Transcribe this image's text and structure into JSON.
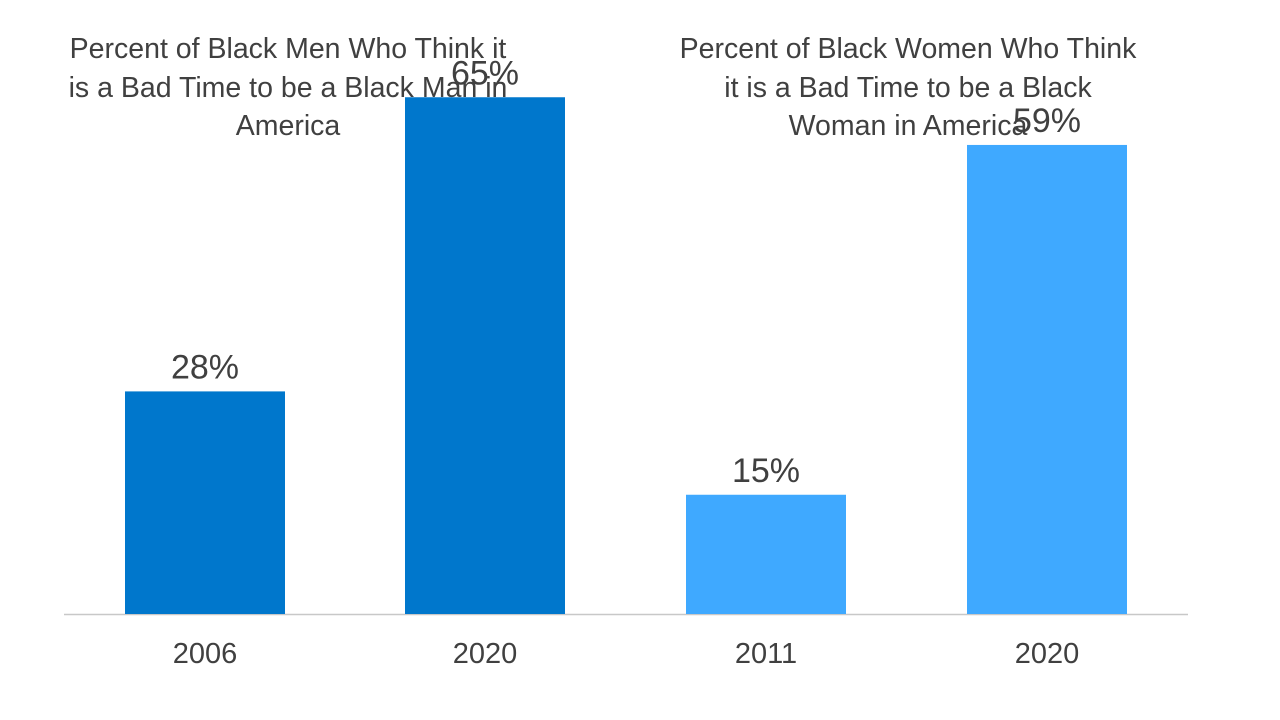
{
  "chart_data": [
    {
      "type": "bar",
      "title": "Percent of Black Men Who Think it is a Bad Time to be a Black Man in America",
      "categories": [
        "2006",
        "2020"
      ],
      "values": [
        28,
        65
      ],
      "value_labels": [
        "28%",
        "65%"
      ],
      "color": "#0077CC",
      "ylim": [
        0,
        100
      ],
      "grid": false,
      "legend": "none"
    },
    {
      "type": "bar",
      "title": "Percent of Black Women Who Think it is a Bad Time to be a Black Woman in America",
      "categories": [
        "2011",
        "2020"
      ],
      "values": [
        15,
        59
      ],
      "value_labels": [
        "15%",
        "59%"
      ],
      "color": "#3FA9FF",
      "ylim": [
        0,
        100
      ],
      "grid": false,
      "legend": "none"
    }
  ],
  "colors": {
    "axis": "#C8C8C8",
    "text": "#404040"
  }
}
